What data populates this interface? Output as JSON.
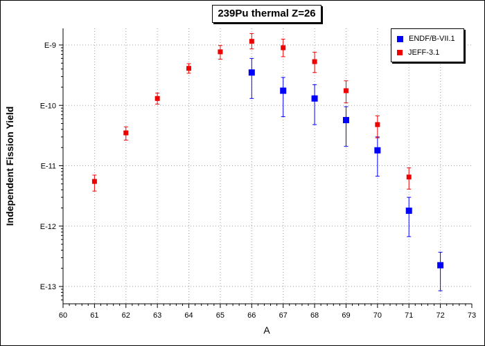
{
  "chart_data": {
    "type": "scatter",
    "title": "239Pu thermal Z=26",
    "xlabel": "A",
    "ylabel": "Independent Fission Yield",
    "xlim": [
      60,
      73
    ],
    "ylim": [
      1e-13,
      1e-09
    ],
    "yscale": "log",
    "x_ticks": [
      "60",
      "61",
      "62",
      "63",
      "64",
      "65",
      "66",
      "67",
      "68",
      "69",
      "70",
      "71",
      "72",
      "73"
    ],
    "y_ticks": [
      {
        "value": 1e-09,
        "label": "E-9"
      },
      {
        "value": 1e-10,
        "label": "E-10"
      },
      {
        "value": 1e-11,
        "label": "E-11"
      },
      {
        "value": 1e-12,
        "label": "E-12"
      },
      {
        "value": 1e-13,
        "label": "E-13"
      }
    ],
    "grid": true,
    "legend_position": "top-right",
    "series": [
      {
        "name": "ENDF/B-VII.1",
        "color": "#0000ff",
        "marker": "square",
        "points": [
          {
            "x": 66,
            "y": 3.5e-10,
            "ylo": 1.3e-10,
            "yhi": 6e-10
          },
          {
            "x": 67,
            "y": 1.75e-10,
            "ylo": 6.5e-11,
            "yhi": 2.9e-10
          },
          {
            "x": 68,
            "y": 1.3e-10,
            "ylo": 4.8e-11,
            "yhi": 2.2e-10
          },
          {
            "x": 69,
            "y": 5.7e-11,
            "ylo": 2.1e-11,
            "yhi": 9.5e-11
          },
          {
            "x": 70,
            "y": 1.8e-11,
            "ylo": 6.7e-12,
            "yhi": 3e-11
          },
          {
            "x": 71,
            "y": 1.8e-12,
            "ylo": 6.7e-13,
            "yhi": 3e-12
          },
          {
            "x": 72,
            "y": 2.25e-13,
            "ylo": 8.5e-14,
            "yhi": 3.7e-13
          }
        ]
      },
      {
        "name": "JEFF-3.1",
        "color": "#ee0000",
        "marker": "square",
        "points": [
          {
            "x": 61,
            "y": 5.5e-12,
            "ylo": 3.8e-12,
            "yhi": 7e-12
          },
          {
            "x": 62,
            "y": 3.5e-11,
            "ylo": 2.65e-11,
            "yhi": 4.4e-11
          },
          {
            "x": 63,
            "y": 1.3e-10,
            "ylo": 1.05e-10,
            "yhi": 1.6e-10
          },
          {
            "x": 64,
            "y": 4.1e-10,
            "ylo": 3.4e-10,
            "yhi": 4.9e-10
          },
          {
            "x": 65,
            "y": 7.7e-10,
            "ylo": 5.8e-10,
            "yhi": 9.8e-10
          },
          {
            "x": 66,
            "y": 1.15e-09,
            "ylo": 8.6e-10,
            "yhi": 1.55e-09
          },
          {
            "x": 67,
            "y": 9e-10,
            "ylo": 6.4e-10,
            "yhi": 1.25e-09
          },
          {
            "x": 68,
            "y": 5.3e-10,
            "ylo": 3.5e-10,
            "yhi": 7.6e-10
          },
          {
            "x": 69,
            "y": 1.75e-10,
            "ylo": 1.1e-10,
            "yhi": 2.55e-10
          },
          {
            "x": 70,
            "y": 4.8e-11,
            "ylo": 2.9e-11,
            "yhi": 6.7e-11
          },
          {
            "x": 71,
            "y": 6.5e-12,
            "ylo": 4.1e-12,
            "yhi": 9.2e-12
          }
        ]
      }
    ]
  }
}
